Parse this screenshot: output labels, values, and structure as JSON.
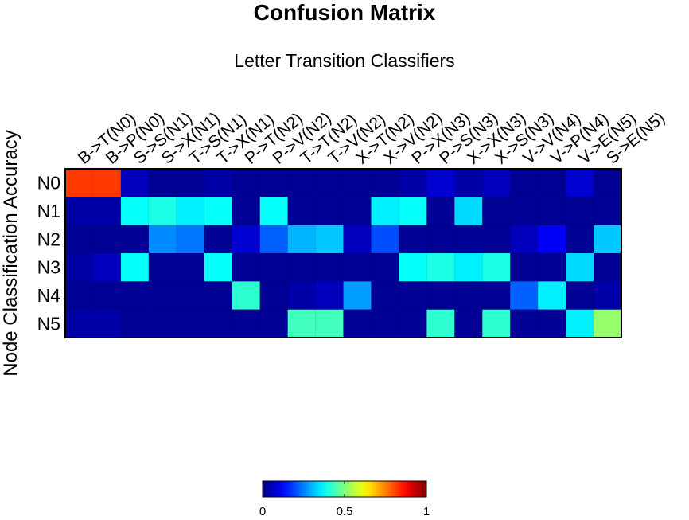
{
  "chart_data": {
    "type": "heatmap",
    "title": "Confusion Matrix",
    "subtitle": "Letter Transition Classifiers",
    "ylabel": "Node Classification Accuracy",
    "rows": [
      "N0",
      "N1",
      "N2",
      "N3",
      "N4",
      "N5"
    ],
    "columns": [
      "B->T(N0)",
      "B->P(N0)",
      "S->S(N1)",
      "S->X(N1)",
      "T->S(N1)",
      "T->X(N1)",
      "P->T(N2)",
      "P->V(N2)",
      "T->T(N2)",
      "T->V(N2)",
      "X->T(N2)",
      "X->V(N2)",
      "P->X(N3)",
      "P->S(N3)",
      "X->X(N3)",
      "X->S(N3)",
      "V->V(N4)",
      "V->P(N4)",
      "V->E(N5)",
      "S->E(N5)"
    ],
    "values": [
      [
        0.82,
        0.82,
        0.06,
        0.02,
        0.02,
        0.04,
        0.02,
        0.02,
        0.02,
        0.02,
        0.02,
        0.02,
        0.04,
        0.08,
        0.04,
        0.06,
        0.02,
        0.02,
        0.08,
        0.02
      ],
      [
        0.04,
        0.04,
        0.38,
        0.4,
        0.36,
        0.38,
        0.02,
        0.38,
        0.02,
        0.02,
        0.02,
        0.36,
        0.38,
        0.02,
        0.34,
        0.02,
        0.02,
        0.02,
        0.02,
        0.02
      ],
      [
        0.02,
        0.02,
        0.02,
        0.26,
        0.24,
        0.02,
        0.08,
        0.22,
        0.3,
        0.32,
        0.06,
        0.2,
        0.02,
        0.02,
        0.02,
        0.02,
        0.06,
        0.12,
        0.02,
        0.32
      ],
      [
        0.04,
        0.06,
        0.38,
        0.02,
        0.02,
        0.38,
        0.02,
        0.02,
        0.02,
        0.02,
        0.02,
        0.02,
        0.38,
        0.4,
        0.36,
        0.4,
        0.02,
        0.02,
        0.34,
        0.02
      ],
      [
        0.02,
        0.02,
        0.02,
        0.02,
        0.02,
        0.02,
        0.42,
        0.02,
        0.04,
        0.06,
        0.28,
        0.02,
        0.02,
        0.02,
        0.02,
        0.02,
        0.22,
        0.36,
        0.02,
        0.04
      ],
      [
        0.04,
        0.04,
        0.02,
        0.02,
        0.02,
        0.02,
        0.02,
        0.02,
        0.44,
        0.44,
        0.02,
        0.02,
        0.02,
        0.42,
        0.02,
        0.42,
        0.02,
        0.02,
        0.36,
        0.52
      ]
    ],
    "colormap": "jet",
    "clim": [
      0,
      1
    ],
    "colorbar": {
      "ticks": [
        "0",
        "0.5",
        "1"
      ],
      "tick_values": [
        0,
        0.5,
        1
      ]
    },
    "grid": false
  }
}
